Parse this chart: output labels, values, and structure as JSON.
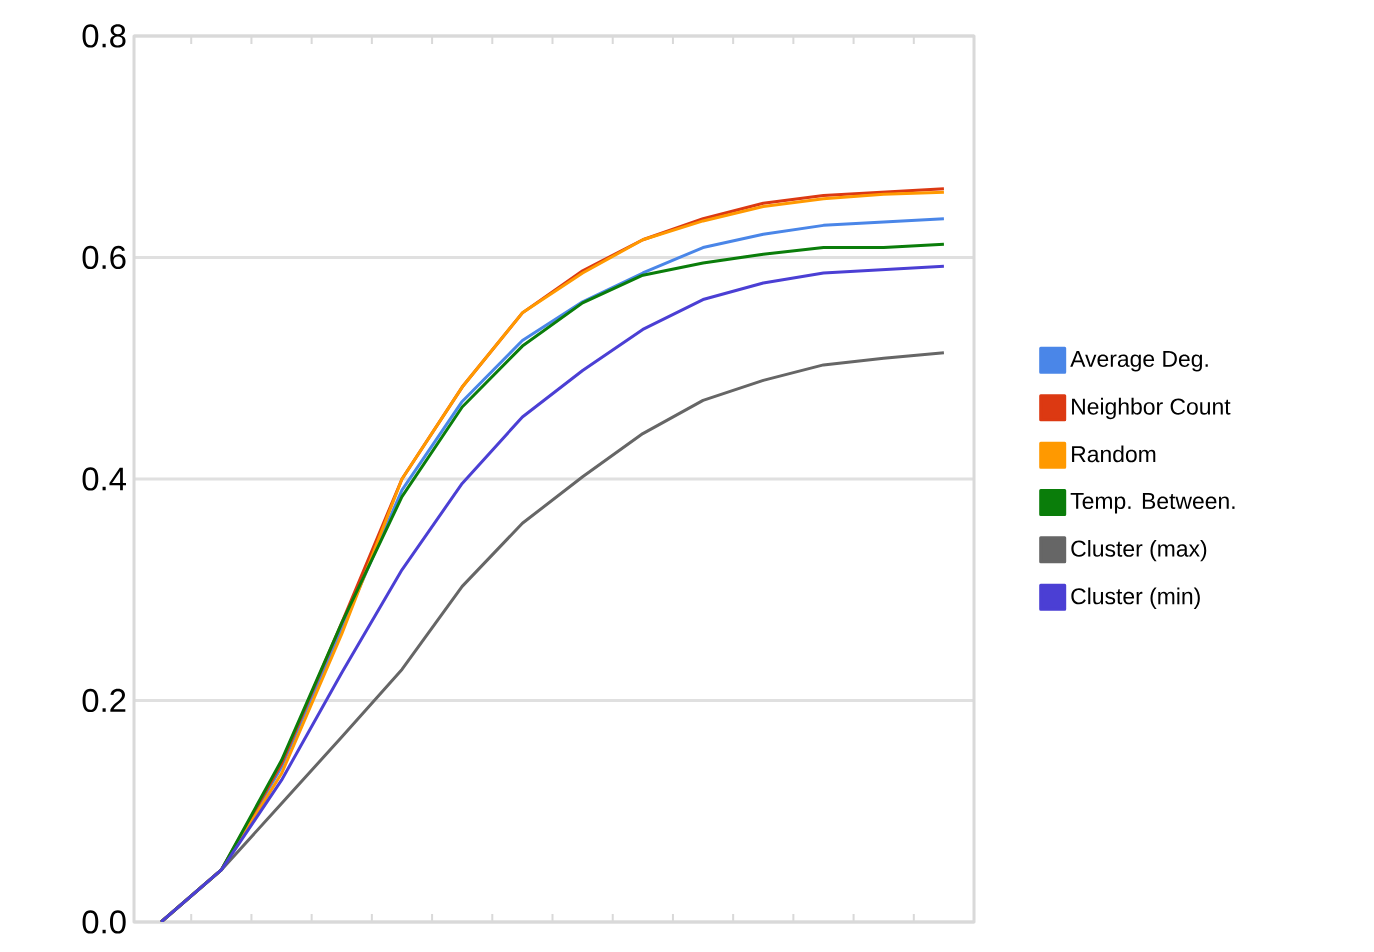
{
  "chart_data": {
    "type": "line",
    "categories": [
      null,
      null,
      null,
      null,
      null,
      null,
      null,
      null,
      null,
      null,
      null,
      null,
      null,
      null
    ],
    "series": [
      {
        "name": "Average Deg.",
        "color": "#4a86e8",
        "values": [
          0,
          0.047,
          0.14,
          0.265,
          0.39,
          0.47,
          0.525,
          0.56,
          0.586,
          0.609,
          0.621,
          0.629,
          0.632,
          0.635
        ]
      },
      {
        "name": "Neighbor Count",
        "color": "#dc3912",
        "values": [
          0,
          0.047,
          0.143,
          0.27,
          0.4,
          0.483,
          0.55,
          0.588,
          0.616,
          0.635,
          0.649,
          0.656,
          0.659,
          0.662
        ]
      },
      {
        "name": "Random",
        "color": "#ff9900",
        "values": [
          0,
          0.047,
          0.134,
          0.26,
          0.4,
          0.483,
          0.55,
          0.586,
          0.616,
          0.633,
          0.646,
          0.653,
          0.657,
          0.659
        ]
      },
      {
        "name": "Temp. Between.",
        "color": "#0a7d0a",
        "values": [
          0,
          0.047,
          0.146,
          0.27,
          0.384,
          0.465,
          0.52,
          0.559,
          0.584,
          0.595,
          0.603,
          0.609,
          0.609,
          0.612
        ]
      },
      {
        "name": "Cluster (max)",
        "color": "#666666",
        "values": [
          0,
          0.047,
          0.107,
          0.167,
          0.228,
          0.303,
          0.36,
          0.402,
          0.441,
          0.471,
          0.489,
          0.503,
          0.509,
          0.514
        ]
      },
      {
        "name": "Cluster (min)",
        "color": "#4b3fd4",
        "values": [
          0,
          0.047,
          0.128,
          0.225,
          0.318,
          0.396,
          0.456,
          0.498,
          0.535,
          0.562,
          0.577,
          0.586,
          0.589,
          0.592
        ]
      }
    ],
    "ylim": [
      0,
      0.8
    ],
    "yticks": [
      {
        "value": 0,
        "label": "0.0"
      },
      {
        "value": 0.2,
        "label": "0.2"
      },
      {
        "value": 0.4,
        "label": "0.4"
      },
      {
        "value": 0.6,
        "label": "0.6"
      },
      {
        "value": 0.8,
        "label": "0.8"
      }
    ],
    "grid": "y",
    "legend": "right",
    "marker": "none",
    "line_style": "solid"
  }
}
